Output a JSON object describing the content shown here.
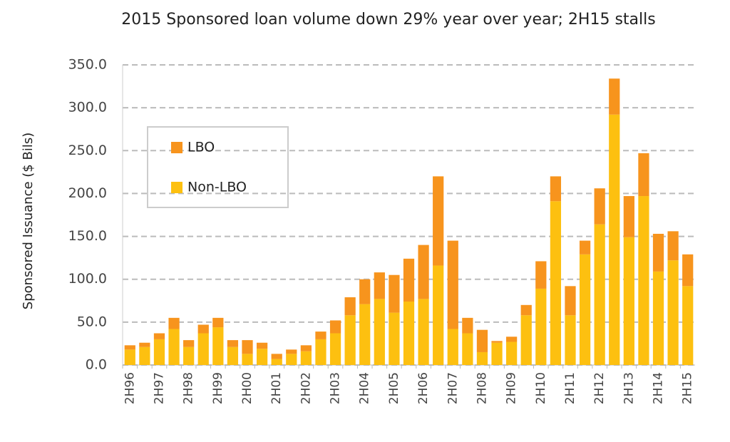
{
  "chart_data": {
    "type": "stacked_bar",
    "title": "2015 Sponsored loan volume down 29% year over year; 2H15 stalls",
    "y_label": "Sponsored Issuance ($ Bils)",
    "categories": [
      "2H96",
      null,
      "2H97",
      null,
      "2H98",
      null,
      "2H99",
      null,
      "2H00",
      null,
      "2H01",
      null,
      "2H02",
      null,
      "2H03",
      null,
      "2H04",
      null,
      "2H05",
      null,
      "2H06",
      null,
      "2H07",
      null,
      "2H08",
      null,
      "2H09",
      null,
      "2H10",
      null,
      "2H11",
      null,
      "2H12",
      null,
      "2H13",
      null,
      "2H14",
      null,
      "2H15"
    ],
    "series": [
      {
        "name": "Non-LBO",
        "color": "#fdc010",
        "values": [
          18,
          21,
          30,
          42,
          21,
          37,
          44,
          21,
          13,
          19,
          7,
          13,
          16,
          30,
          37,
          58,
          71,
          77,
          61,
          74,
          77,
          116,
          42,
          37,
          15,
          26,
          27,
          58,
          89,
          191,
          58,
          129,
          164,
          292,
          149,
          197,
          109,
          122,
          92
        ]
      },
      {
        "name": "LBO",
        "color": "#f7941d",
        "values": [
          5,
          5,
          7,
          13,
          8,
          10,
          11,
          8,
          16,
          7,
          6,
          5,
          7,
          9,
          15,
          21,
          29,
          31,
          44,
          50,
          63,
          104,
          103,
          18,
          26,
          2,
          6,
          12,
          32,
          29,
          34,
          16,
          42,
          42,
          48,
          50,
          44,
          34,
          37
        ]
      }
    ],
    "ylim": [
      0,
      350
    ],
    "yticks": [
      {
        "value": 0,
        "label": "0.0"
      },
      {
        "value": 50,
        "label": "50.0"
      },
      {
        "value": 100,
        "label": "100.0"
      },
      {
        "value": 150,
        "label": "150.0"
      },
      {
        "value": 200,
        "label": "200.0"
      },
      {
        "value": 250,
        "label": "250.0"
      },
      {
        "value": 300,
        "label": "300.0"
      },
      {
        "value": 350,
        "label": "350.0"
      }
    ],
    "grid": true
  }
}
